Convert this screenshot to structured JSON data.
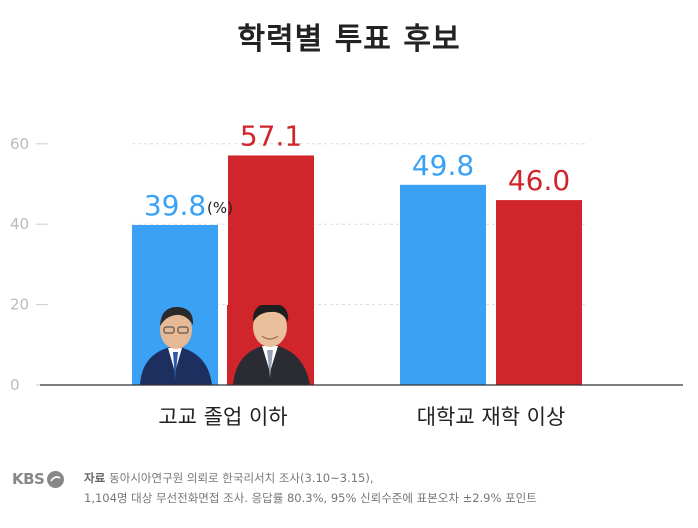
{
  "header": {
    "title": "학력별 투표 후보"
  },
  "chart_data": {
    "type": "bar",
    "title": "학력별 투표 후보",
    "categories": [
      "고교 졸업 이하",
      "대학교 재학 이상"
    ],
    "series": [
      {
        "values": [
          39.8,
          49.8
        ],
        "color": "#3aa1f5",
        "value_labels": [
          "39.8",
          "49.8"
        ]
      },
      {
        "values": [
          57.1,
          46.0
        ],
        "color": "#d0262b",
        "value_labels": [
          "57.1",
          "46.0"
        ]
      }
    ],
    "unit_annotation": "(%)",
    "ylim": [
      0,
      65
    ],
    "yticks": [
      {
        "value": 0,
        "label": "0"
      },
      {
        "value": 20,
        "label": "20"
      },
      {
        "value": 40,
        "label": "40"
      },
      {
        "value": 60,
        "label": "60"
      }
    ],
    "grid": true,
    "legend": "none",
    "candidate_photos": "portrait photos inside the first category's bars"
  },
  "footer": {
    "logo_text": "KBS",
    "logo_icon": "kbs-logo-mark-icon",
    "source_label": "자료",
    "source_line1": "동아시아연구원 의뢰로 한국리서치 조사(3.10~3.15),",
    "source_line2": "1,104명 대상 무선전화면접 조사. 응답률 80.3%, 95% 신뢰수준에 표본오차 ±2.9% 포인트"
  }
}
